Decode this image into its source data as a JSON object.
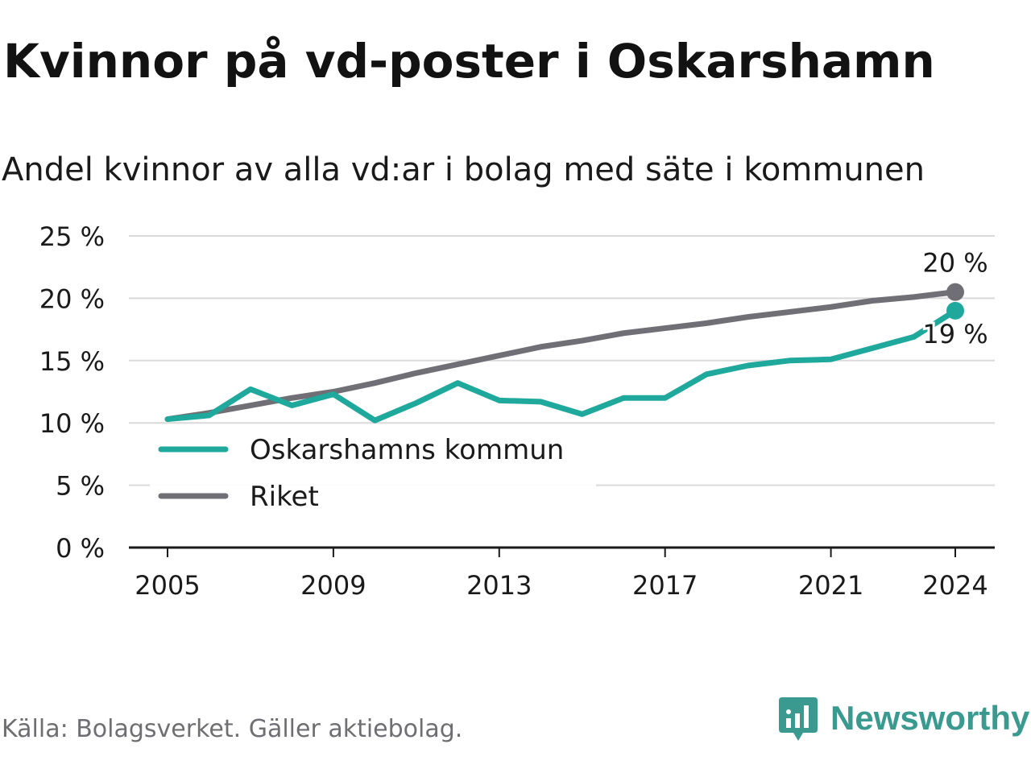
{
  "title": "Kvinnor på vd-poster i Oskarshamn",
  "subtitle": "Andel kvinnor av alla vd:ar i bolag med säte i kommunen",
  "source": "Källa: Bolagsverket. Gäller aktiebolag.",
  "brand": "Newsworthy",
  "colors": {
    "oskarshamn": "#1fa89c",
    "riket": "#6f6f75",
    "grid": "#d9d9d9",
    "axis": "#1a1a1a",
    "brand": "#3a9a90"
  },
  "chart_data": {
    "type": "line",
    "x": [
      2005,
      2006,
      2007,
      2008,
      2009,
      2010,
      2011,
      2012,
      2013,
      2014,
      2015,
      2016,
      2017,
      2018,
      2019,
      2020,
      2021,
      2022,
      2023,
      2024
    ],
    "series": [
      {
        "name": "Oskarshamns kommun",
        "values": [
          10.3,
          10.6,
          12.7,
          11.4,
          12.3,
          10.2,
          11.6,
          13.2,
          11.8,
          11.7,
          10.7,
          12.0,
          12.0,
          13.9,
          14.6,
          15.0,
          15.1,
          16.0,
          16.9,
          19.0
        ],
        "end_label": "19 %"
      },
      {
        "name": "Riket",
        "values": [
          10.3,
          10.8,
          11.4,
          12.0,
          12.5,
          13.2,
          14.0,
          14.7,
          15.4,
          16.1,
          16.6,
          17.2,
          17.6,
          18.0,
          18.5,
          18.9,
          19.3,
          19.8,
          20.1,
          20.5
        ],
        "end_label": "20 %"
      }
    ],
    "x_ticks": [
      "2005",
      "2009",
      "2013",
      "2017",
      "2021",
      "2024"
    ],
    "y_ticks": [
      "0 %",
      "5 %",
      "10 %",
      "15 %",
      "20 %",
      "25 %"
    ],
    "ylim": [
      0,
      25
    ],
    "grid": true,
    "legend": "bottom-left"
  }
}
